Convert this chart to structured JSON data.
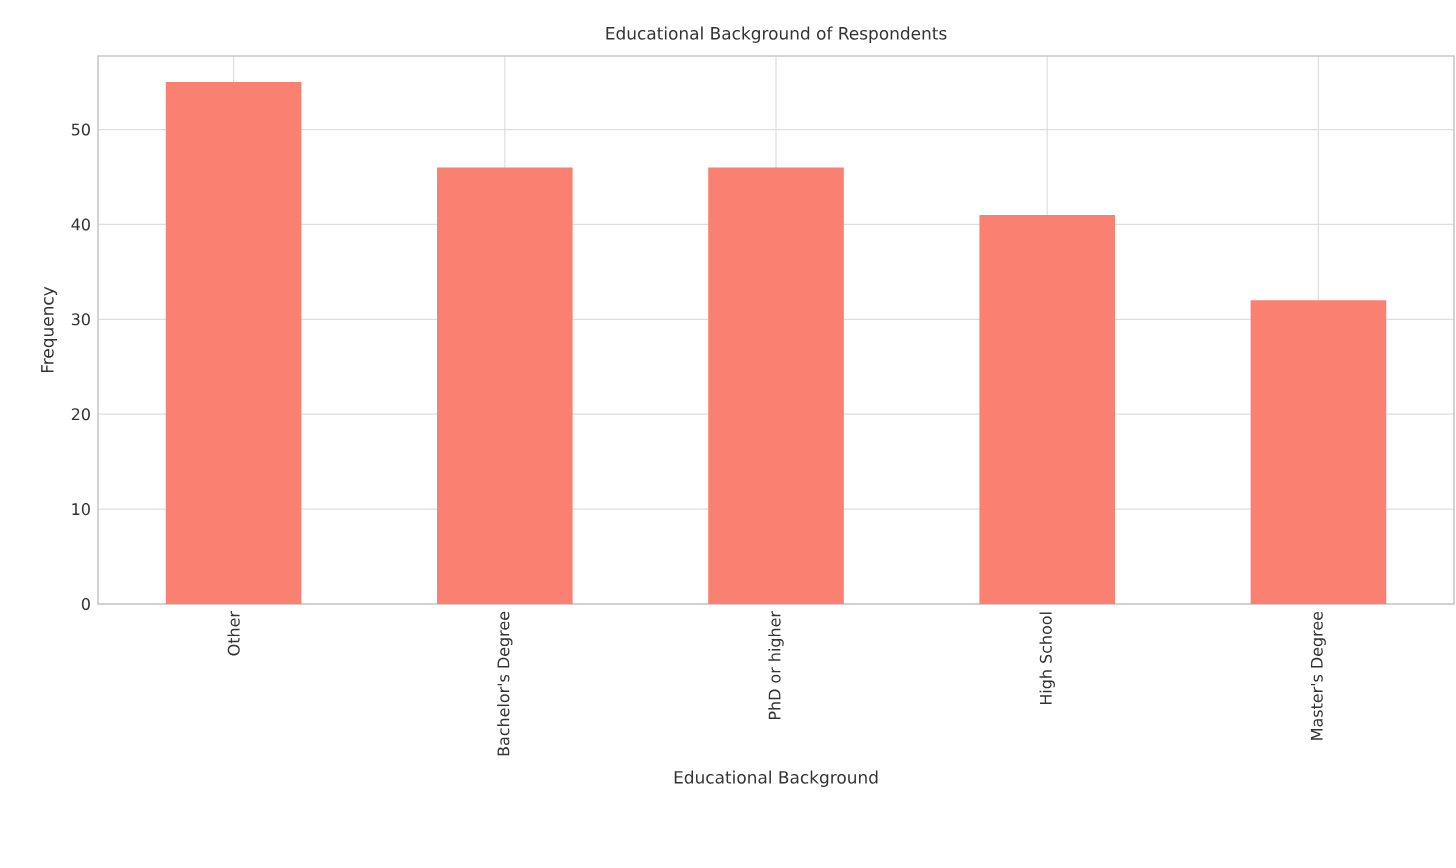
{
  "chart_data": {
    "type": "bar",
    "title": "Educational Background of Respondents",
    "xlabel": "Educational Background",
    "ylabel": "Frequency",
    "categories": [
      "Other",
      "Bachelor's Degree",
      "PhD or higher",
      "High School",
      "Master's Degree"
    ],
    "values": [
      55,
      46,
      46,
      41,
      32
    ],
    "color": "#fa8072",
    "ylim": [
      0,
      57.75
    ],
    "yticks": [
      0,
      10,
      20,
      30,
      40,
      50
    ],
    "grid": true
  }
}
